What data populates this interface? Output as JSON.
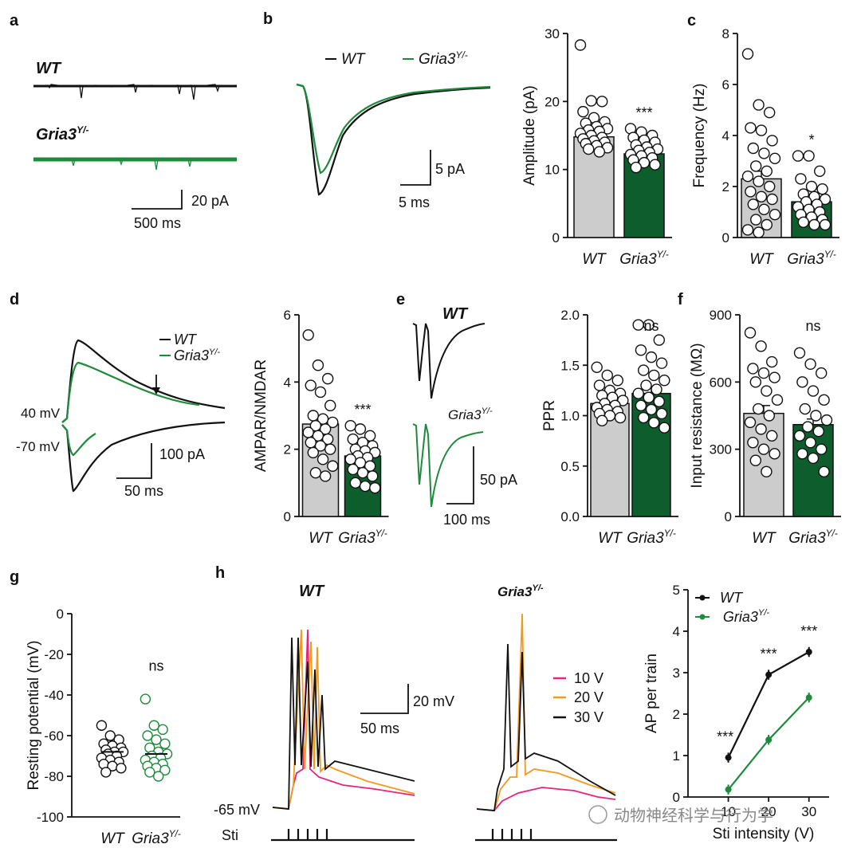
{
  "colors": {
    "wt": "#111111",
    "ko": "#1e8a3c",
    "bar_wt": "#cccccc",
    "bar_ko": "#0d5e2c",
    "v10": "#e8237a",
    "v20": "#f39a1d",
    "v30": "#111111"
  },
  "panels": {
    "a": "a",
    "b": "b",
    "c": "c",
    "d": "d",
    "e": "e",
    "f": "f",
    "g": "g",
    "h": "h"
  },
  "genotypes": {
    "wt": "WT",
    "ko_base": "Gria3",
    "ko_sup": "Y/-"
  },
  "panel_a": {
    "scale_y": "20 pA",
    "scale_x": "500 ms"
  },
  "panel_b_trace": {
    "scale_y": "5 pA",
    "scale_x": "5 ms"
  },
  "panel_d_trace": {
    "v_pos": "40 mV",
    "v_neg": "-70 mV",
    "scale_y": "100 pA",
    "scale_x": "50 ms"
  },
  "panel_e_trace": {
    "scale_y": "50 pA",
    "scale_x": "100 ms"
  },
  "panel_h_trace": {
    "rest": "-65 mV",
    "sti": "Sti",
    "scale_y": "20 mV",
    "scale_x": "50 ms",
    "legend": [
      "10 V",
      "20 V",
      "30 V"
    ]
  },
  "watermark": "动物神经科学与行为学",
  "chart_data": [
    {
      "id": "b",
      "type": "bar",
      "ylabel": "Amplitude (pA)",
      "ylim": [
        0,
        30
      ],
      "ticks": [
        "0",
        "10",
        "20",
        "30"
      ],
      "categories": [
        "WT",
        "Gria3Y/-"
      ],
      "values": [
        14.8,
        12.3
      ],
      "sem": [
        0.6,
        0.4
      ],
      "sig": "***",
      "points": [
        [
          28.3,
          20.1,
          20.0,
          18.5,
          17.6,
          17.0,
          16.8,
          16.3,
          16.0,
          15.8,
          15.6,
          15.3,
          15.0,
          14.7,
          14.5,
          14.2,
          14.0,
          13.8,
          13.5,
          13.2,
          13.0,
          12.6
        ],
        [
          16.0,
          15.5,
          15.0,
          14.7,
          14.3,
          14.0,
          13.6,
          13.3,
          13.0,
          12.8,
          12.5,
          12.2,
          12.0,
          11.7,
          11.4,
          11.0,
          10.7,
          10.3
        ]
      ]
    },
    {
      "id": "c",
      "type": "bar",
      "ylabel": "Frequency (Hz)",
      "ylim": [
        0,
        8
      ],
      "ticks": [
        "0",
        "2",
        "4",
        "6",
        "8"
      ],
      "categories": [
        "WT",
        "Gria3Y/-"
      ],
      "values": [
        2.3,
        1.4
      ],
      "sem": [
        0.3,
        0.15
      ],
      "sig": "*",
      "points": [
        [
          7.2,
          5.2,
          4.9,
          4.3,
          4.2,
          3.8,
          3.5,
          3.3,
          3.1,
          2.8,
          2.6,
          2.4,
          2.2,
          2.0,
          1.8,
          1.6,
          1.5,
          1.3,
          1.1,
          0.9,
          0.7,
          0.5,
          0.3,
          0.2
        ],
        [
          3.2,
          3.2,
          2.6,
          2.3,
          2.0,
          1.9,
          1.7,
          1.6,
          1.5,
          1.4,
          1.3,
          1.2,
          1.1,
          1.0,
          0.9,
          0.8,
          0.7,
          0.6,
          0.5,
          0.5
        ]
      ]
    },
    {
      "id": "d",
      "type": "bar",
      "ylabel": "AMPAR/NMDAR",
      "ylim": [
        0,
        6
      ],
      "ticks": [
        "0",
        "2",
        "4",
        "6"
      ],
      "categories": [
        "WT",
        "Gria3Y/-"
      ],
      "values": [
        2.75,
        1.8
      ],
      "sem": [
        0.2,
        0.1
      ],
      "sig": "***",
      "points": [
        [
          5.4,
          4.5,
          4.1,
          3.9,
          3.7,
          3.3,
          3.0,
          2.9,
          2.8,
          2.7,
          2.6,
          2.5,
          2.4,
          2.3,
          2.2,
          2.1,
          2.0,
          1.9,
          1.7,
          1.5,
          1.3,
          1.2
        ],
        [
          2.7,
          2.6,
          2.4,
          2.3,
          2.2,
          2.1,
          2.0,
          1.95,
          1.9,
          1.8,
          1.75,
          1.7,
          1.6,
          1.5,
          1.4,
          1.3,
          1.2,
          1.0,
          0.9,
          0.85
        ]
      ]
    },
    {
      "id": "e",
      "type": "bar",
      "ylabel": "PPR",
      "ylim": [
        0,
        2
      ],
      "ticks": [
        "0.0",
        "0.5",
        "1.0",
        "1.5",
        "2.0"
      ],
      "categories": [
        "WT",
        "Gria3Y/-"
      ],
      "values": [
        1.12,
        1.22
      ],
      "sem": [
        0.04,
        0.06
      ],
      "sig": "ns",
      "points": [
        [
          1.48,
          1.4,
          1.35,
          1.3,
          1.25,
          1.22,
          1.2,
          1.18,
          1.15,
          1.12,
          1.1,
          1.08,
          1.06,
          1.04,
          1.02,
          1.0,
          0.98,
          0.95
        ],
        [
          1.9,
          1.9,
          1.75,
          1.65,
          1.58,
          1.52,
          1.45,
          1.4,
          1.35,
          1.3,
          1.26,
          1.22,
          1.18,
          1.14,
          1.1,
          1.06,
          1.02,
          0.98,
          0.93,
          0.88
        ]
      ]
    },
    {
      "id": "f",
      "type": "bar",
      "ylabel": "Input resistance (MΩ)",
      "ylim": [
        0,
        900
      ],
      "ticks": [
        "0",
        "300",
        "600",
        "900"
      ],
      "categories": [
        "WT",
        "Gria3Y/-"
      ],
      "values": [
        460,
        410
      ],
      "sem": [
        35,
        25
      ],
      "sig": "ns",
      "points": [
        [
          820,
          760,
          690,
          660,
          640,
          620,
          600,
          560,
          520,
          480,
          450,
          420,
          390,
          360,
          330,
          300,
          280,
          250,
          200
        ],
        [
          730,
          680,
          640,
          600,
          560,
          520,
          480,
          450,
          430,
          400,
          380,
          360,
          330,
          300,
          280,
          260,
          200
        ]
      ]
    },
    {
      "id": "g",
      "type": "scatter",
      "ylabel": "Resting potential (mV)",
      "ylim": [
        -100,
        0
      ],
      "ticks": [
        "0",
        "-20",
        "-40",
        "-60",
        "-80",
        "-100"
      ],
      "categories": [
        "WT",
        "Gria3Y/-"
      ],
      "values": [
        -68,
        -69
      ],
      "sig": "ns",
      "points": [
        [
          -55,
          -60,
          -62,
          -64,
          -65,
          -66,
          -67,
          -68,
          -68,
          -69,
          -70,
          -71,
          -72,
          -73,
          -74,
          -75,
          -76,
          -78
        ],
        [
          -42,
          -55,
          -57,
          -60,
          -62,
          -64,
          -66,
          -68,
          -69,
          -70,
          -71,
          -72,
          -73,
          -74,
          -75,
          -76,
          -77,
          -78,
          -80
        ]
      ]
    },
    {
      "id": "h",
      "type": "line",
      "ylabel": "AP per train",
      "xlabel": "Sti intensity (V)",
      "ylim": [
        0,
        5
      ],
      "xlim": [
        0,
        35
      ],
      "x": [
        10,
        20,
        30
      ],
      "xticks": [
        "10",
        "20",
        "30"
      ],
      "ticks": [
        "0",
        "1",
        "2",
        "3",
        "4",
        "5"
      ],
      "series": [
        {
          "name": "WT",
          "values": [
            0.95,
            2.95,
            3.5
          ]
        },
        {
          "name": "Gria3Y/-",
          "values": [
            0.18,
            1.38,
            2.4
          ]
        }
      ],
      "sig": [
        "***",
        "***",
        "***"
      ]
    }
  ]
}
